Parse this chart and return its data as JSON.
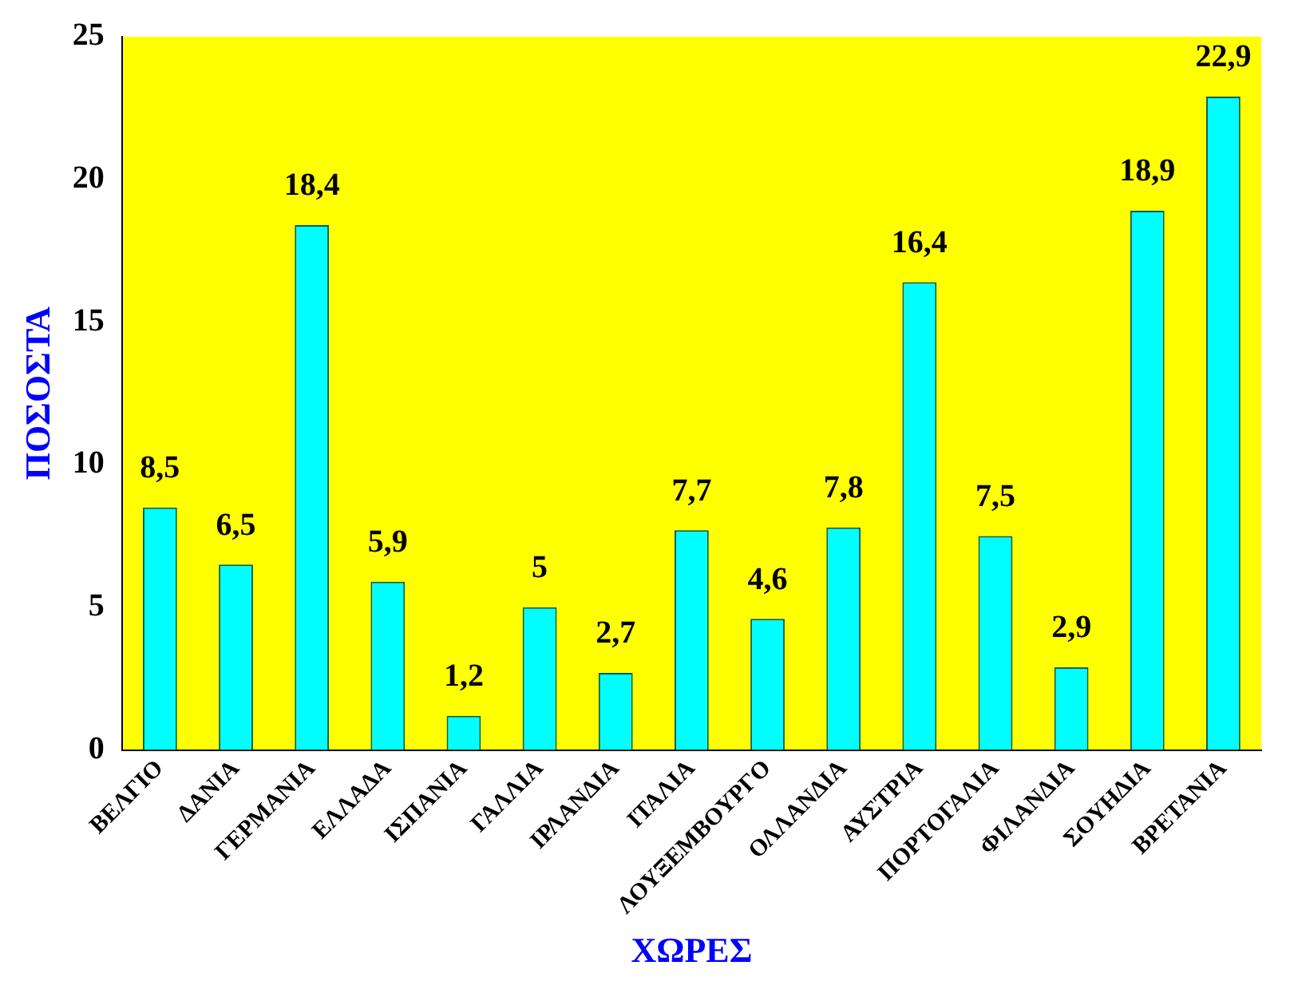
{
  "chart_data": {
    "type": "bar",
    "xlabel": "ΧΩΡΕΣ",
    "ylabel": "ΠΟΣΟΣΤΑ",
    "categories": [
      "ΒΕΛΓΙΟ",
      "ΔΑΝΙΑ",
      "ΓΕΡΜΑΝΙΑ",
      "ΕΛΛΑΔΑ",
      "ΙΣΠΑΝΙΑ",
      "ΓΑΛΛΙΑ",
      "ΙΡΛΑΝΔΙΑ",
      "ΙΤΑΛΙΑ",
      "ΛΟΥΞΕΜΒΟΥΡΓΟ",
      "ΟΛΛΑΝΔΙΑ",
      "ΑΥΣΤΡΙΑ",
      "ΠΟΡΤΟΓΑΛΙΑ",
      "ΦΙΛΑΝΔΙΑ",
      "ΣΟΥΗΔΙΑ",
      "ΒΡΕΤΑΝΙΑ"
    ],
    "values": [
      8.5,
      6.5,
      18.4,
      5.9,
      1.2,
      5,
      2.7,
      7.7,
      4.6,
      7.8,
      16.4,
      7.5,
      2.9,
      18.9,
      22.9
    ],
    "value_labels": [
      "8,5",
      "6,5",
      "18,4",
      "5,9",
      "1,2",
      "5",
      "2,7",
      "7,7",
      "4,6",
      "7,8",
      "16,4",
      "7,5",
      "2,9",
      "18,9",
      "22,9"
    ],
    "color": "#00ffff",
    "ylim": [
      0,
      25
    ],
    "yticks": [
      0,
      5,
      10,
      15,
      20,
      25
    ],
    "grid": false,
    "legend": false
  }
}
